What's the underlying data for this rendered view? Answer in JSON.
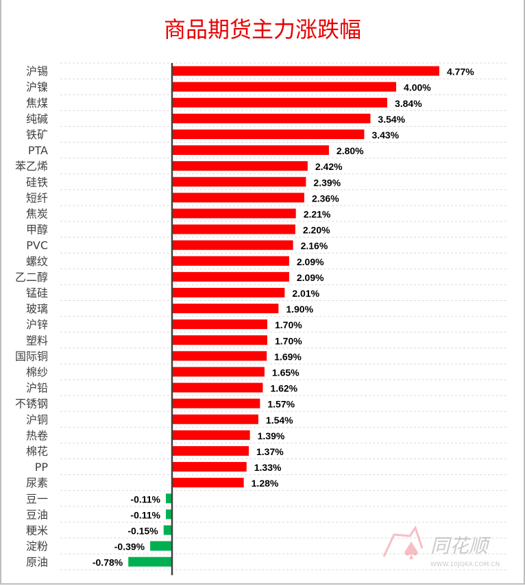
{
  "chart_data": {
    "type": "bar",
    "orientation": "horizontal",
    "title": "商品期货主力涨跌幅",
    "categories": [
      "沪锡",
      "沪镍",
      "焦煤",
      "纯碱",
      "铁矿",
      "PTA",
      "苯乙烯",
      "硅铁",
      "短纤",
      "焦炭",
      "甲醇",
      "PVC",
      "螺纹",
      "乙二醇",
      "锰硅",
      "玻璃",
      "沪锌",
      "塑料",
      "国际铜",
      "棉纱",
      "沪铅",
      "不锈钢",
      "沪铜",
      "热卷",
      "棉花",
      "PP",
      "尿素",
      "豆一",
      "豆油",
      "粳米",
      "淀粉",
      "原油"
    ],
    "values": [
      4.77,
      4.0,
      3.84,
      3.54,
      3.43,
      2.8,
      2.42,
      2.39,
      2.36,
      2.21,
      2.2,
      2.16,
      2.09,
      2.09,
      2.01,
      1.9,
      1.7,
      1.7,
      1.69,
      1.65,
      1.62,
      1.57,
      1.54,
      1.39,
      1.37,
      1.33,
      1.28,
      -0.11,
      -0.11,
      -0.15,
      -0.39,
      -0.78
    ],
    "labels": [
      "4.77%",
      "4.00%",
      "3.84%",
      "3.54%",
      "3.43%",
      "2.80%",
      "2.42%",
      "2.39%",
      "2.36%",
      "2.21%",
      "2.20%",
      "2.16%",
      "2.09%",
      "2.09%",
      "2.01%",
      "1.90%",
      "1.70%",
      "1.70%",
      "1.69%",
      "1.65%",
      "1.62%",
      "1.57%",
      "1.54%",
      "1.39%",
      "1.37%",
      "1.33%",
      "1.28%",
      "-0.11%",
      "-0.11%",
      "-0.15%",
      "-0.39%",
      "-0.78%"
    ],
    "unit": "%",
    "xlim": [
      -0.78,
      4.77
    ],
    "grid": true,
    "colors": {
      "positive": "#ff0000",
      "negative": "#00b050",
      "title": "#e60000"
    }
  },
  "watermark": {
    "brand": "同花顺",
    "url": "WWW.10JQKA.COM.CN"
  }
}
